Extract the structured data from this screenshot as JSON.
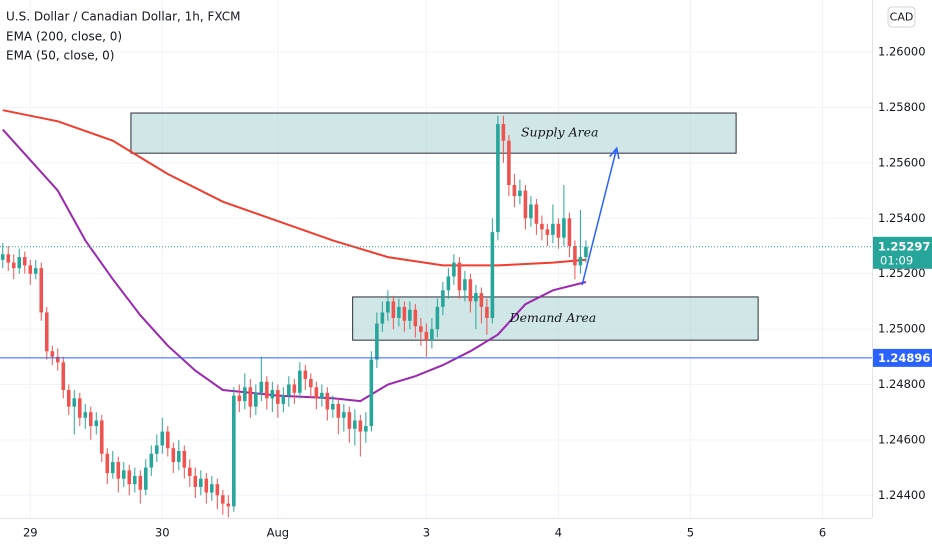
{
  "chart_data": {
    "type": "candlestick",
    "title": "U.S. Dollar / Canadian Dollar, 1h, FXCM",
    "currency": "CAD",
    "up_color": "#26a69a",
    "down_color": "#ef5350",
    "grid": true,
    "xlim": [
      -0.5,
      158
    ],
    "ylim": [
      1.24318,
      1.26188
    ],
    "xticks": [
      {
        "value": 5,
        "label": "29"
      },
      {
        "value": 29,
        "label": "30"
      },
      {
        "value": 50,
        "label": "Aug"
      },
      {
        "value": 77,
        "label": "3"
      },
      {
        "value": 101,
        "label": "4"
      },
      {
        "value": 125,
        "label": "5"
      },
      {
        "value": 149,
        "label": "6"
      }
    ],
    "yticks": [
      {
        "value": 1.244,
        "label": "1.24400"
      },
      {
        "value": 1.246,
        "label": "1.24600"
      },
      {
        "value": 1.248,
        "label": "1.24800"
      },
      {
        "value": 1.25,
        "label": "1.25000"
      },
      {
        "value": 1.252,
        "label": "1.25200"
      },
      {
        "value": 1.254,
        "label": "1.25400"
      },
      {
        "value": 1.256,
        "label": "1.25600"
      },
      {
        "value": 1.258,
        "label": "1.25800"
      },
      {
        "value": 1.26,
        "label": "1.26000"
      }
    ],
    "x": [
      0,
      1,
      2,
      3,
      4,
      5,
      6,
      7,
      8,
      9,
      10,
      11,
      12,
      13,
      14,
      15,
      16,
      17,
      18,
      19,
      20,
      21,
      22,
      23,
      24,
      25,
      26,
      27,
      28,
      29,
      30,
      31,
      32,
      33,
      34,
      35,
      36,
      37,
      38,
      39,
      40,
      41,
      42,
      43,
      44,
      45,
      46,
      47,
      48,
      49,
      50,
      51,
      52,
      53,
      54,
      55,
      56,
      57,
      58,
      59,
      60,
      61,
      62,
      63,
      64,
      65,
      66,
      67,
      68,
      69,
      70,
      71,
      72,
      73,
      74,
      75,
      76,
      77,
      78,
      79,
      80,
      81,
      82,
      83,
      84,
      85,
      86,
      87,
      88,
      89,
      90,
      91,
      92,
      93,
      94,
      95,
      96,
      97,
      98,
      99,
      100,
      101,
      102,
      103,
      104,
      105,
      106
    ],
    "open": [
      1.2525,
      1.2527,
      1.2524,
      1.2522,
      1.2526,
      1.2523,
      1.252,
      1.2522,
      1.2506,
      1.2492,
      1.249,
      1.2488,
      1.2478,
      1.2472,
      1.2475,
      1.2468,
      1.247,
      1.2465,
      1.2467,
      1.2455,
      1.2448,
      1.2452,
      1.2446,
      1.2449,
      1.2444,
      1.2447,
      1.2442,
      1.245,
      1.2455,
      1.2458,
      1.2463,
      1.2457,
      1.2452,
      1.2456,
      1.245,
      1.2447,
      1.2443,
      1.2446,
      1.2441,
      1.2444,
      1.244,
      1.2437,
      1.2436,
      1.2476,
      1.2474,
      1.2479,
      1.2472,
      1.2477,
      1.2481,
      1.2475,
      1.2478,
      1.2473,
      1.2476,
      1.248,
      1.2477,
      1.2485,
      1.2482,
      1.2479,
      1.2475,
      1.2477,
      1.2471,
      1.2473,
      1.2468,
      1.247,
      1.2464,
      1.2467,
      1.2463,
      1.2465,
      1.2489,
      1.2502,
      1.2506,
      1.251,
      1.2504,
      1.2508,
      1.2503,
      1.2507,
      1.2501,
      1.2499,
      1.2496,
      1.25,
      1.2508,
      1.2514,
      1.2519,
      1.2524,
      1.2514,
      1.2518,
      1.251,
      1.2513,
      1.2508,
      1.2504,
      1.2535,
      1.2574,
      1.2568,
      1.2552,
      1.2548,
      1.255,
      1.254,
      1.2545,
      1.2538,
      1.2536,
      1.2534,
      1.2538,
      1.2533,
      1.254,
      1.253,
      1.2523,
      1.2526
    ],
    "high": [
      1.2531,
      1.253,
      1.2527,
      1.2529,
      1.2528,
      1.2525,
      1.2525,
      1.2524,
      1.2508,
      1.2494,
      1.2493,
      1.249,
      1.248,
      1.2478,
      1.2477,
      1.2473,
      1.2472,
      1.247,
      1.2469,
      1.2457,
      1.2456,
      1.2454,
      1.2452,
      1.2451,
      1.245,
      1.2449,
      1.2453,
      1.2458,
      1.2462,
      1.2468,
      1.2465,
      1.2459,
      1.246,
      1.2458,
      1.2453,
      1.245,
      1.2449,
      1.2448,
      1.2447,
      1.2446,
      1.2442,
      1.244,
      1.2479,
      1.248,
      1.2484,
      1.2482,
      1.248,
      1.249,
      1.2483,
      1.2481,
      1.248,
      1.2479,
      1.2483,
      1.2482,
      1.2488,
      1.2487,
      1.2484,
      1.2481,
      1.248,
      1.2479,
      1.2476,
      1.2475,
      1.2473,
      1.2472,
      1.2471,
      1.2469,
      1.247,
      1.2492,
      1.2506,
      1.251,
      1.2514,
      1.2512,
      1.2511,
      1.251,
      1.251,
      1.2509,
      1.2504,
      1.2502,
      1.2504,
      1.2511,
      1.2517,
      1.2522,
      1.2527,
      1.2526,
      1.2521,
      1.252,
      1.2516,
      1.2515,
      1.2511,
      1.254,
      1.2577,
      1.2577,
      1.257,
      1.2556,
      1.2554,
      1.2552,
      1.2548,
      1.2547,
      1.2541,
      1.2538,
      1.2545,
      1.254,
      1.2552,
      1.2542,
      1.2532,
      1.2543,
      1.2532
    ],
    "low": [
      1.2522,
      1.2521,
      1.2518,
      1.252,
      1.252,
      1.2516,
      1.2518,
      1.2503,
      1.2489,
      1.2487,
      1.2485,
      1.2475,
      1.2469,
      1.2462,
      1.2465,
      1.2464,
      1.246,
      1.2462,
      1.2452,
      1.2444,
      1.2446,
      1.2441,
      1.2443,
      1.244,
      1.2441,
      1.2437,
      1.244,
      1.2447,
      1.2452,
      1.2455,
      1.2454,
      1.2448,
      1.2449,
      1.2446,
      1.2443,
      1.2439,
      1.244,
      1.2437,
      1.2438,
      1.2435,
      1.2433,
      1.2432,
      1.2434,
      1.247,
      1.2471,
      1.2468,
      1.2469,
      1.2474,
      1.2471,
      1.247,
      1.2468,
      1.247,
      1.2472,
      1.2473,
      1.2475,
      1.2478,
      1.2475,
      1.2471,
      1.2472,
      1.2467,
      1.2468,
      1.2462,
      1.2463,
      1.2459,
      1.2458,
      1.2454,
      1.2459,
      1.2463,
      1.2486,
      1.2499,
      1.2503,
      1.25,
      1.2501,
      1.2499,
      1.25,
      1.2497,
      1.2494,
      1.249,
      1.2493,
      1.2497,
      1.2505,
      1.2511,
      1.2516,
      1.2511,
      1.251,
      1.2506,
      1.25,
      1.2502,
      1.2498,
      1.2502,
      1.2532,
      1.256,
      1.2548,
      1.2544,
      1.2545,
      1.2536,
      1.2537,
      1.2534,
      1.2532,
      1.253,
      1.2531,
      1.2529,
      1.253,
      1.2526,
      1.2518,
      1.252,
      1.2524
    ],
    "close": [
      1.2527,
      1.2524,
      1.2522,
      1.2526,
      1.2523,
      1.252,
      1.2522,
      1.2506,
      1.2492,
      1.249,
      1.2488,
      1.2478,
      1.2472,
      1.2475,
      1.2468,
      1.247,
      1.2465,
      1.2467,
      1.2455,
      1.2448,
      1.2452,
      1.2446,
      1.2449,
      1.2444,
      1.2447,
      1.2442,
      1.245,
      1.2455,
      1.2458,
      1.2463,
      1.2457,
      1.2452,
      1.2456,
      1.245,
      1.2447,
      1.2443,
      1.2446,
      1.2441,
      1.2444,
      1.244,
      1.2437,
      1.2436,
      1.2476,
      1.2474,
      1.2479,
      1.2472,
      1.2477,
      1.2481,
      1.2475,
      1.2478,
      1.2473,
      1.2476,
      1.248,
      1.2477,
      1.2485,
      1.2482,
      1.2479,
      1.2475,
      1.2477,
      1.2471,
      1.2473,
      1.2468,
      1.247,
      1.2464,
      1.2467,
      1.2463,
      1.2465,
      1.2489,
      1.2502,
      1.2506,
      1.251,
      1.2504,
      1.2508,
      1.2503,
      1.2507,
      1.2501,
      1.2499,
      1.2496,
      1.25,
      1.2508,
      1.2514,
      1.2519,
      1.2524,
      1.2514,
      1.2518,
      1.251,
      1.2513,
      1.2508,
      1.2504,
      1.2535,
      1.2574,
      1.2568,
      1.2552,
      1.2548,
      1.255,
      1.254,
      1.2545,
      1.2538,
      1.2536,
      1.2534,
      1.2538,
      1.2533,
      1.254,
      1.253,
      1.2523,
      1.2526,
      1.25297
    ],
    "indicators": [
      {
        "name": "EMA (200, close, 0)",
        "color": "#f23c2e",
        "x": [
          0,
          10,
          20,
          30,
          40,
          50,
          60,
          70,
          80,
          90,
          100,
          106
        ],
        "values": [
          1.2579,
          1.2575,
          1.2568,
          1.2556,
          1.2546,
          1.2539,
          1.2532,
          1.2526,
          1.2523,
          1.2523,
          1.2524,
          1.2525
        ]
      },
      {
        "name": "EMA (50, close, 0)",
        "color": "#9c27b0",
        "x": [
          0,
          10,
          15,
          20,
          25,
          30,
          35,
          40,
          45,
          50,
          60,
          65,
          70,
          75,
          80,
          85,
          90,
          95,
          100,
          106
        ],
        "values": [
          1.2572,
          1.255,
          1.2532,
          1.2518,
          1.2505,
          1.2494,
          1.2485,
          1.2478,
          1.2477,
          1.2476,
          1.2475,
          1.2474,
          1.248,
          1.2483,
          1.2487,
          1.2492,
          1.2498,
          1.2509,
          1.2514,
          1.2517
        ]
      }
    ],
    "last_price": {
      "value": 1.25297,
      "label": "1.25297",
      "countdown": "01:09",
      "color": "#26a69a"
    },
    "hlines": [
      {
        "value": 1.24896,
        "label": "1.24896",
        "color": "#2962ff"
      }
    ],
    "zones": [
      {
        "label": "Supply Area",
        "x": [
          23.3,
          133.3
        ],
        "y": [
          1.25635,
          1.2578
        ]
      },
      {
        "label": "Demand Area",
        "x": [
          63.6,
          137.3
        ],
        "y": [
          1.2496,
          1.25116
        ]
      }
    ],
    "arrow": {
      "x": [
        105.3,
        111.6
      ],
      "y": [
        1.25159,
        1.25653
      ],
      "color": "#2962ff"
    }
  }
}
